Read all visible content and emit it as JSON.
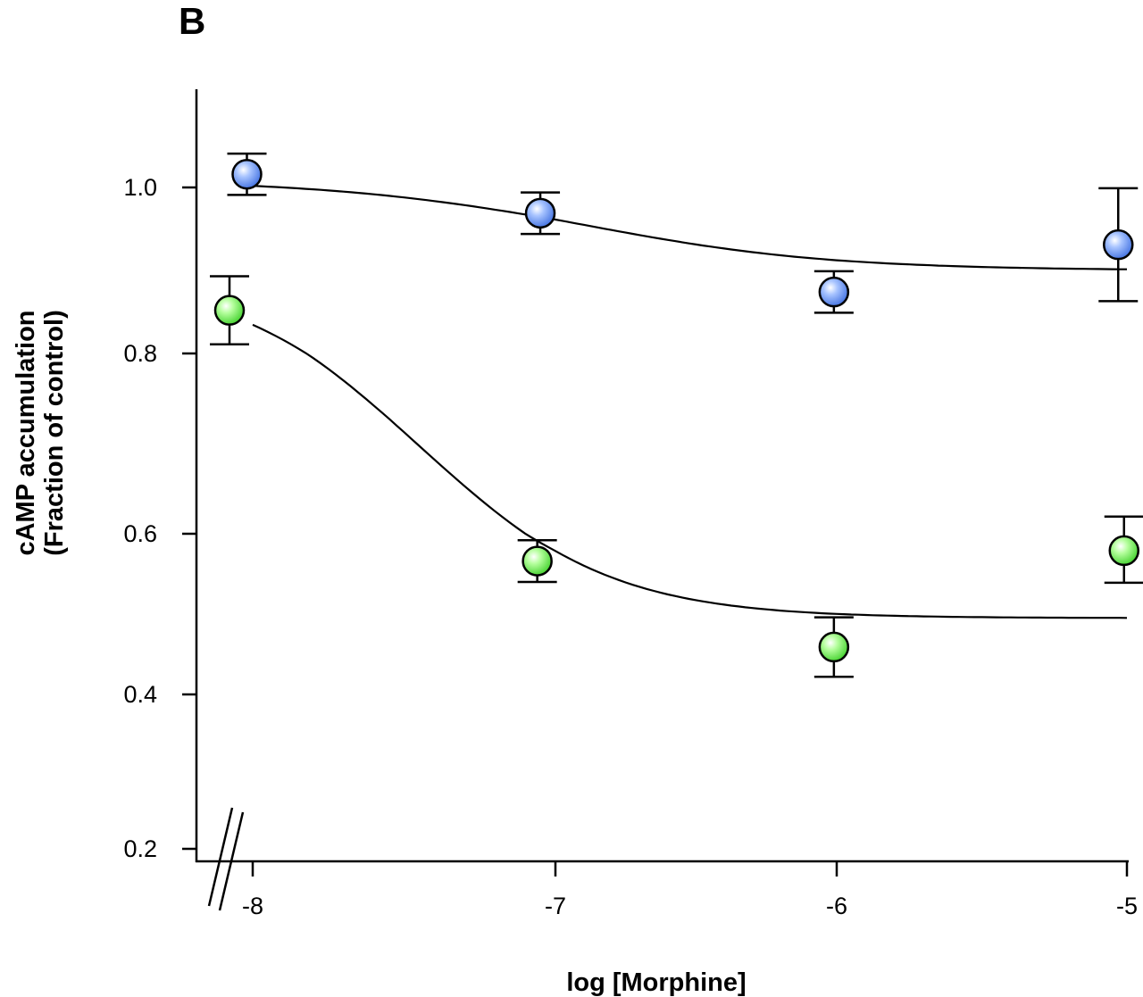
{
  "chart_data": {
    "type": "scatter",
    "panel_label": "B",
    "xlabel": "log [Morphine]",
    "ylabel_lines": [
      "cAMP accumulation",
      "(Fraction of control)"
    ],
    "xticks": [
      {
        "value": -8,
        "label": "-8"
      },
      {
        "value": -7,
        "label": "-7"
      },
      {
        "value": -6,
        "label": "-6"
      },
      {
        "value": -5,
        "label": "-5"
      }
    ],
    "yticks": [
      {
        "value": 1.0,
        "label": "1.0"
      },
      {
        "value": 0.8,
        "label": "0.8"
      },
      {
        "value": 0.6,
        "label": "0.6"
      },
      {
        "value": 0.4,
        "label": "0.4"
      },
      {
        "value": 0.2,
        "label": "0.2"
      }
    ],
    "xlim": [
      -8.2,
      -5
    ],
    "ylim": [
      0.2,
      1.12
    ],
    "axis_break": "y-axis between 0.2 and 0.4",
    "grid": false,
    "series": [
      {
        "name": "blue",
        "color": "#5b8ef0",
        "x": [
          -8.02,
          -7.05,
          -6.01,
          -5.03
        ],
        "y": [
          1.016,
          0.969,
          0.874,
          0.931
        ],
        "err": [
          0.025,
          0.025,
          0.025,
          0.068
        ],
        "fit": {
          "model": "sigmoid",
          "top": 1.01,
          "bottom": 0.9,
          "logEC50": -6.9,
          "hill": 1.0
        }
      },
      {
        "name": "green",
        "color": "#5de84a",
        "x": [
          -8.08,
          -7.06,
          -6.01,
          -5.01
        ],
        "y": [
          0.852,
          0.566,
          0.459,
          0.579
        ],
        "err": [
          0.041,
          0.026,
          0.037,
          0.04
        ],
        "fit": {
          "model": "sigmoid",
          "top": 0.9,
          "bottom": 0.495,
          "logEC50": -7.45,
          "hill": 1.3
        }
      }
    ]
  }
}
